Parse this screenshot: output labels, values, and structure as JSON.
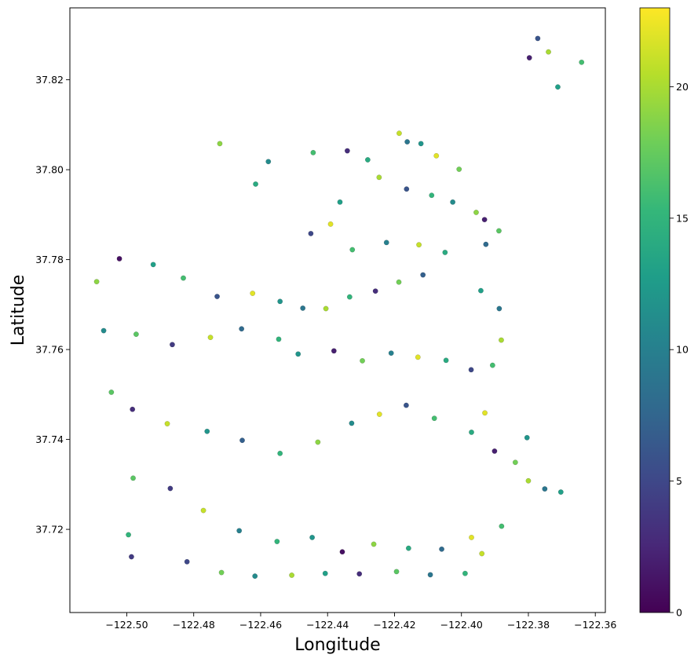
{
  "chart_data": {
    "type": "scatter",
    "title": "",
    "xlabel": "Longitude",
    "ylabel": "Latitude",
    "xlim": [
      -122.517,
      -122.357
    ],
    "ylim": [
      37.7015,
      37.836
    ],
    "x_ticks": [
      -122.5,
      -122.48,
      -122.46,
      -122.44,
      -122.42,
      -122.4,
      -122.38,
      -122.36
    ],
    "x_tick_labels": [
      "−122.50",
      "−122.48",
      "−122.46",
      "−122.44",
      "−122.42",
      "−122.40",
      "−122.38",
      "−122.36"
    ],
    "y_ticks": [
      37.72,
      37.74,
      37.76,
      37.78,
      37.8,
      37.82
    ],
    "y_tick_labels": [
      "37.72",
      "37.74",
      "37.76",
      "37.78",
      "37.80",
      "37.82"
    ],
    "colorbar": {
      "colormap": "viridis",
      "range": [
        0,
        23
      ],
      "ticks": [
        0,
        5,
        10,
        15,
        20
      ],
      "tick_labels": [
        "0",
        "5",
        "10",
        "15",
        "20"
      ],
      "colors": [
        "#440154",
        "#482878",
        "#3e4989",
        "#31688e",
        "#26828e",
        "#1f9e89",
        "#35b779",
        "#6ece58",
        "#b5de2b",
        "#fde725"
      ]
    },
    "grid": false,
    "legend": "none",
    "series": [
      {
        "points": [
          [
            -122.4186,
            37.8081,
            21
          ],
          [
            -122.4162,
            37.8062,
            9
          ],
          [
            -122.4121,
            37.8058,
            12
          ],
          [
            -122.4075,
            37.8031,
            22
          ],
          [
            -122.4443,
            37.8038,
            16
          ],
          [
            -122.4341,
            37.8042,
            3
          ],
          [
            -122.428,
            37.8022,
            14
          ],
          [
            -122.4007,
            37.8001,
            18
          ],
          [
            -122.4246,
            37.7983,
            20
          ],
          [
            -122.4164,
            37.7957,
            6
          ],
          [
            -122.4089,
            37.7943,
            15
          ],
          [
            -122.4026,
            37.7928,
            11
          ],
          [
            -122.3956,
            37.7905,
            19
          ],
          [
            -122.3931,
            37.7889,
            2
          ],
          [
            -122.3888,
            37.7864,
            17
          ],
          [
            -122.3927,
            37.7834,
            8
          ],
          [
            -122.4363,
            37.7928,
            13
          ],
          [
            -122.4391,
            37.7879,
            22
          ],
          [
            -122.445,
            37.7858,
            5
          ],
          [
            -122.4326,
            37.7822,
            16
          ],
          [
            -122.4224,
            37.7838,
            10
          ],
          [
            -122.4127,
            37.7833,
            21
          ],
          [
            -122.4049,
            37.7816,
            14
          ],
          [
            -122.4115,
            37.7766,
            7
          ],
          [
            -122.4187,
            37.775,
            18
          ],
          [
            -122.4257,
            37.773,
            3
          ],
          [
            -122.4334,
            37.7717,
            15
          ],
          [
            -122.4405,
            37.7691,
            20
          ],
          [
            -122.4474,
            37.7692,
            9
          ],
          [
            -122.4542,
            37.7707,
            12
          ],
          [
            -122.4624,
            37.7725,
            22
          ],
          [
            -122.473,
            37.7718,
            6
          ],
          [
            -122.4831,
            37.7759,
            16
          ],
          [
            -122.4921,
            37.7789,
            13
          ],
          [
            -122.5022,
            37.7802,
            1
          ],
          [
            -122.509,
            37.7751,
            19
          ],
          [
            -122.5069,
            37.7642,
            11
          ],
          [
            -122.4972,
            37.7634,
            17
          ],
          [
            -122.4864,
            37.7611,
            4
          ],
          [
            -122.475,
            37.7627,
            21
          ],
          [
            -122.4657,
            37.7646,
            8
          ],
          [
            -122.4546,
            37.7623,
            15
          ],
          [
            -122.4488,
            37.759,
            12
          ],
          [
            -122.4381,
            37.7597,
            2
          ],
          [
            -122.4296,
            37.7575,
            18
          ],
          [
            -122.421,
            37.7592,
            10
          ],
          [
            -122.413,
            37.7583,
            22
          ],
          [
            -122.4046,
            37.7576,
            14
          ],
          [
            -122.3971,
            37.7555,
            5
          ],
          [
            -122.3907,
            37.7565,
            16
          ],
          [
            -122.3881,
            37.7621,
            20
          ],
          [
            -122.3887,
            37.7691,
            9
          ],
          [
            -122.3942,
            37.7731,
            13
          ],
          [
            -122.5046,
            37.7505,
            17
          ],
          [
            -122.4983,
            37.7467,
            3
          ],
          [
            -122.4879,
            37.7435,
            21
          ],
          [
            -122.476,
            37.7418,
            12
          ],
          [
            -122.4655,
            37.7398,
            7
          ],
          [
            -122.4542,
            37.7369,
            15
          ],
          [
            -122.4429,
            37.7394,
            19
          ],
          [
            -122.4328,
            37.7436,
            11
          ],
          [
            -122.4245,
            37.7456,
            22
          ],
          [
            -122.4165,
            37.7476,
            6
          ],
          [
            -122.4081,
            37.7447,
            16
          ],
          [
            -122.397,
            37.7416,
            14
          ],
          [
            -122.3901,
            37.7374,
            2
          ],
          [
            -122.3839,
            37.7349,
            18
          ],
          [
            -122.38,
            37.7308,
            20
          ],
          [
            -122.3751,
            37.729,
            9
          ],
          [
            -122.3703,
            37.7283,
            13
          ],
          [
            -122.4981,
            37.7314,
            17
          ],
          [
            -122.487,
            37.7291,
            4
          ],
          [
            -122.4771,
            37.7242,
            21
          ],
          [
            -122.4664,
            37.7197,
            10
          ],
          [
            -122.4551,
            37.7173,
            15
          ],
          [
            -122.4446,
            37.7182,
            12
          ],
          [
            -122.4356,
            37.715,
            1
          ],
          [
            -122.4262,
            37.7167,
            19
          ],
          [
            -122.4158,
            37.7158,
            14
          ],
          [
            -122.4059,
            37.7156,
            8
          ],
          [
            -122.397,
            37.7182,
            22
          ],
          [
            -122.388,
            37.7207,
            16
          ],
          [
            -122.482,
            37.7128,
            5
          ],
          [
            -122.4717,
            37.7104,
            18
          ],
          [
            -122.4617,
            37.7096,
            11
          ],
          [
            -122.4507,
            37.7098,
            20
          ],
          [
            -122.4407,
            37.7102,
            13
          ],
          [
            -122.4305,
            37.7101,
            3
          ],
          [
            -122.4194,
            37.7106,
            17
          ],
          [
            -122.4093,
            37.7099,
            9
          ],
          [
            -122.3989,
            37.7102,
            15
          ],
          [
            -122.3939,
            37.7146,
            21
          ],
          [
            -122.4722,
            37.8058,
            19
          ],
          [
            -122.4577,
            37.8018,
            11
          ],
          [
            -122.4615,
            37.7968,
            14
          ],
          [
            -122.3772,
            37.8292,
            6
          ],
          [
            -122.374,
            37.8262,
            20
          ],
          [
            -122.3712,
            37.8184,
            13
          ],
          [
            -122.3641,
            37.8239,
            16
          ],
          [
            -122.3797,
            37.8249,
            2
          ],
          [
            -122.4995,
            37.7188,
            15
          ],
          [
            -122.4986,
            37.7139,
            4
          ],
          [
            -122.3804,
            37.7404,
            12
          ],
          [
            -122.393,
            37.7459,
            22
          ]
        ]
      }
    ]
  }
}
